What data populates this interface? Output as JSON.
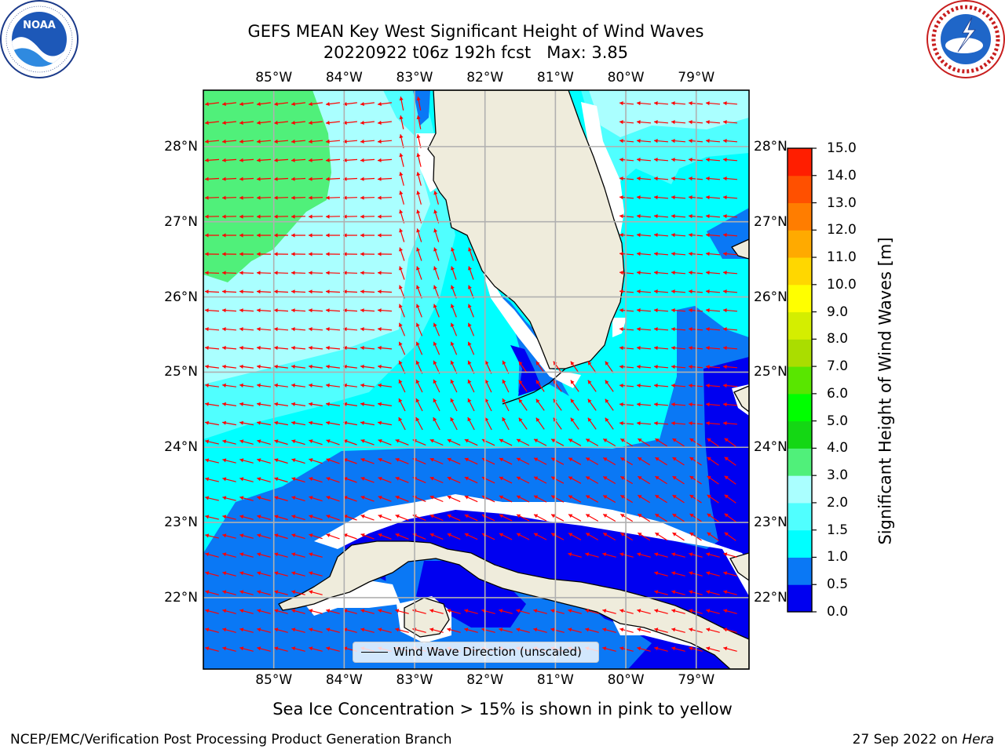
{
  "title": {
    "line1": "GEFS MEAN Key West Significant Height of Wind Waves",
    "line2": "20220922 t06z 192h fcst   Max: 3.85"
  },
  "logos": {
    "left": {
      "icon": "noaa-logo",
      "text": "NOAA",
      "ring_text": "NATIONAL OCEANIC AND ATMOSPHERIC ADMINISTRATION · U.S. DEPARTMENT OF COMMERCE"
    },
    "right": {
      "icon": "nws-logo",
      "ring_text": "NATIONAL WEATHER SERVICE"
    }
  },
  "map": {
    "lon_labels": [
      "85°W",
      "84°W",
      "83°W",
      "82°W",
      "81°W",
      "80°W",
      "79°W"
    ],
    "lat_labels": [
      "28°N",
      "27°N",
      "26°N",
      "25°N",
      "24°N",
      "23°N",
      "22°N"
    ],
    "lon_range": [
      -86.0,
      -78.25
    ],
    "lat_range": [
      21.05,
      28.75
    ],
    "land_color": "#efecdc",
    "arrow_color": "#ff0000",
    "grid_color": "#b0b0b0"
  },
  "colorbar": {
    "label": "Significant Height of Wind Waves [m]",
    "ticks": [
      "0.0",
      "0.5",
      "1.0",
      "1.5",
      "2.0",
      "3.0",
      "4.0",
      "5.0",
      "6.0",
      "7.0",
      "8.0",
      "9.0",
      "10.0",
      "11.0",
      "12.0",
      "13.0",
      "14.0",
      "15.0"
    ],
    "colors": [
      "#0000f0",
      "#0a78f5",
      "#00ffff",
      "#50ffff",
      "#aaffff",
      "#50f07a",
      "#14d714",
      "#00ff00",
      "#59e600",
      "#aadd00",
      "#d4ee00",
      "#ffff00",
      "#ffd700",
      "#ffaa00",
      "#ff7d00",
      "#ff5000",
      "#ff1e00",
      "#ff0000"
    ]
  },
  "legend": {
    "label": "Wind Wave Direction (unscaled)"
  },
  "notes": {
    "ice": "Sea Ice Concentration > 15% is shown in pink to yellow",
    "footer_left": "NCEP/EMC/Verification Post Processing Product Generation Branch",
    "footer_date": "27 Sep 2022 on ",
    "footer_host": "Hera"
  }
}
